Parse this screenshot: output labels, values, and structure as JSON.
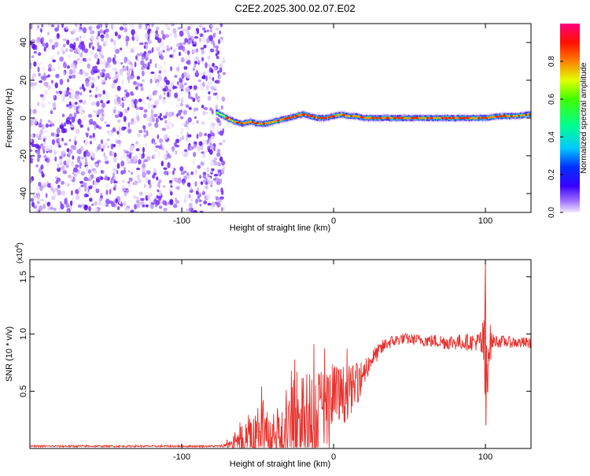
{
  "title": "C2E2.2025.300.02.07.E02",
  "chart_data": [
    {
      "type": "heatmap",
      "name": "spectrogram",
      "xlabel": "Height of straight line (km)",
      "ylabel": "Frequency (Hz)",
      "xlim": [
        -200,
        130
      ],
      "ylim": [
        -50,
        50
      ],
      "xticks": [
        -100,
        0,
        100
      ],
      "yticks": [
        -40,
        -20,
        0,
        20,
        40
      ],
      "noise_region_x": [
        -200,
        -72
      ],
      "signal_trace": {
        "x": [
          -77,
          -70,
          -65,
          -60,
          -55,
          -50,
          -45,
          -40,
          -35,
          -30,
          -25,
          -20,
          -15,
          -10,
          -5,
          0,
          5,
          10,
          15,
          20,
          30,
          40,
          50,
          60,
          70,
          80,
          90,
          100,
          110,
          120,
          130
        ],
        "frequency": [
          3,
          0,
          -2,
          -3,
          -2,
          -3,
          -3,
          -2,
          -1,
          0,
          1,
          2,
          1,
          0,
          0,
          1,
          2,
          1,
          1,
          0,
          0,
          0,
          0,
          0,
          0,
          0,
          0,
          0,
          1,
          1,
          2
        ]
      },
      "colorbar": {
        "label": "Normalized spectral amplitude",
        "range": [
          0,
          1
        ],
        "ticks": [
          "0.0",
          "0.2",
          "0.4",
          "0.6",
          "0.8"
        ]
      }
    },
    {
      "type": "line",
      "name": "snr",
      "xlabel": "Height of straight line (km)",
      "ylabel": "SNR (10 * v/v)",
      "scale_label": "(x10",
      "scale_exponent": "4",
      "color": "#e8312c",
      "xlim": [
        -200,
        130
      ],
      "ylim": [
        0,
        1.65
      ],
      "xticks": [
        -100,
        0,
        100
      ],
      "yticks": [
        "0.5",
        "1.0",
        "1.5"
      ],
      "envelope": {
        "x": [
          -200,
          -75,
          -67,
          -62,
          -55,
          -45,
          -35,
          -25,
          -15,
          -5,
          5,
          15,
          25,
          35,
          45,
          55,
          65,
          75,
          85,
          95,
          99,
          100,
          102,
          105,
          115,
          130
        ],
        "base": [
          0.02,
          0.02,
          0.03,
          0.05,
          0.08,
          0.12,
          0.1,
          0.15,
          0.25,
          0.35,
          0.45,
          0.55,
          0.78,
          0.92,
          0.96,
          0.95,
          0.94,
          0.93,
          0.93,
          0.93,
          0.9,
          0.5,
          0.9,
          0.94,
          0.93,
          0.92
        ],
        "amplitude": [
          0.008,
          0.008,
          0.05,
          0.12,
          0.25,
          0.3,
          0.25,
          0.45,
          0.45,
          0.4,
          0.28,
          0.18,
          0.08,
          0.06,
          0.05,
          0.05,
          0.06,
          0.07,
          0.07,
          0.08,
          0.25,
          0.6,
          0.25,
          0.06,
          0.05,
          0.05
        ]
      },
      "spike": {
        "x": 100,
        "max": 1.62,
        "min": 0.2
      }
    }
  ]
}
